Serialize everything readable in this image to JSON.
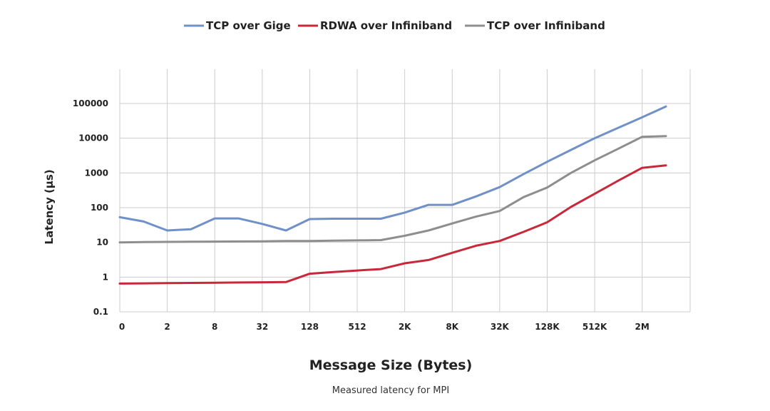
{
  "chart_data": {
    "type": "line",
    "title": "",
    "caption": "Measured latency for MPI",
    "xlabel": "Message Size  (Bytes)",
    "ylabel": "Latency   (μs)",
    "y_scale": "log",
    "ylim": [
      0.1,
      100000
    ],
    "yticks": [
      "0.1",
      "1",
      "10",
      "100",
      "1000",
      "10000",
      "100000"
    ],
    "x_scale": "log2",
    "x_tick_labels": [
      "0",
      "2",
      "8",
      "32",
      "128",
      "512",
      "2K",
      "8K",
      "32K",
      "128K",
      "512K",
      "2M"
    ],
    "x": [
      "0",
      "1",
      "2",
      "4",
      "8",
      "16",
      "32",
      "64",
      "128",
      "256",
      "512",
      "1K",
      "2K",
      "4K",
      "8K",
      "16K",
      "32K",
      "64K",
      "128K",
      "256K",
      "512K",
      "1M",
      "2M",
      "4M"
    ],
    "grid": true,
    "legend_position": "top",
    "series": [
      {
        "name": "TCP over Gige",
        "color": "#7090c8",
        "values": [
          53,
          40,
          22,
          24,
          49,
          49,
          34,
          22,
          47,
          48,
          48,
          48,
          72,
          120,
          120,
          210,
          390,
          920,
          2100,
          4600,
          10000,
          20000,
          40000,
          82000
        ]
      },
      {
        "name": "RDWA over Infiniband",
        "color": "#c8283a",
        "values": [
          0.65,
          0.66,
          0.67,
          0.68,
          0.69,
          0.7,
          0.71,
          0.72,
          1.25,
          1.4,
          1.55,
          1.7,
          2.5,
          3.1,
          5.0,
          8.0,
          11,
          20,
          38,
          105,
          250,
          600,
          1400,
          1650
        ]
      },
      {
        "name": "TCP over Infiniband",
        "color": "#8e8e8e",
        "values": [
          10,
          10.2,
          10.3,
          10.4,
          10.5,
          10.6,
          10.7,
          10.9,
          11,
          11.2,
          11.4,
          11.6,
          15.5,
          22,
          35,
          55,
          80,
          200,
          380,
          1000,
          2300,
          5000,
          11000,
          11500
        ]
      }
    ]
  }
}
